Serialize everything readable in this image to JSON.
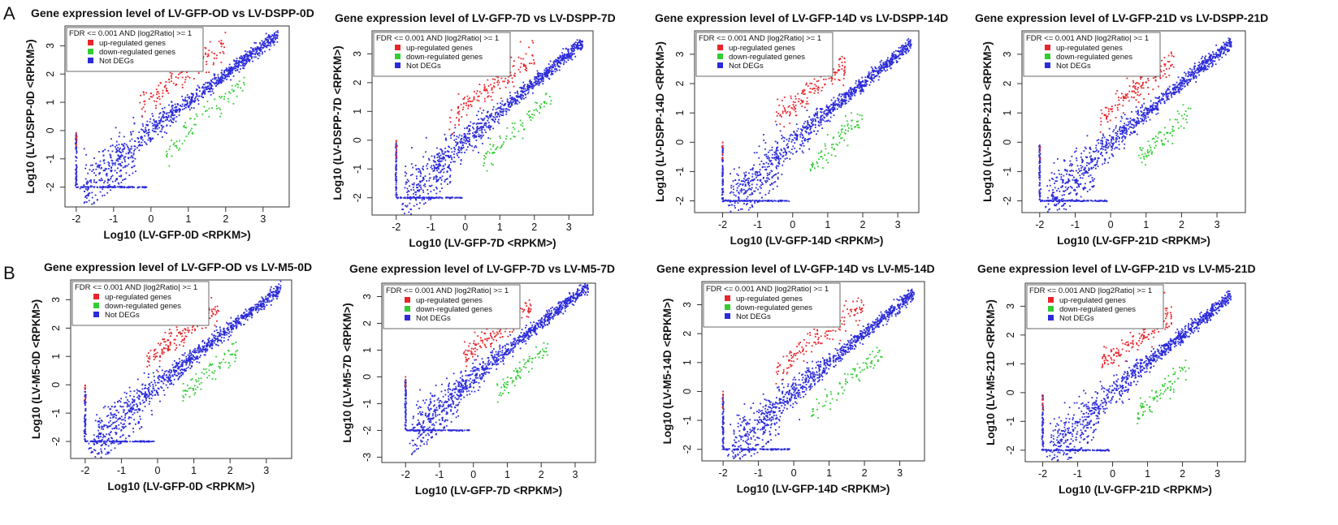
{
  "panel_labels": [
    "A",
    "B"
  ],
  "legend": {
    "header": "FDR <= 0.001  AND |log2Ratio| >= 1",
    "items": [
      {
        "label": "up-regulated genes",
        "color": "#e8262b"
      },
      {
        "label": "down-regulated genes",
        "color": "#33cc33"
      },
      {
        "label": "Not DEGs",
        "color": "#2b2bd9"
      }
    ]
  },
  "chart_data": [
    {
      "type": "scatter",
      "panel": "A",
      "title": "Gene expression level of LV-GFP-OD vs LV-DSPP-0D",
      "xlabel": "Log10 (LV-GFP-0D <RPKM>)",
      "ylabel": "Log10 (LV-DSPP-0D <RPKM>)",
      "xlim": [
        -2.3,
        3.7
      ],
      "ylim": [
        -2.7,
        3.7
      ],
      "xticks": [
        "-2",
        "-1",
        "0",
        "1",
        "2",
        "3"
      ],
      "yticks": [
        "-2",
        "-1",
        "0",
        "1",
        "2",
        "3"
      ],
      "series": [
        {
          "name": "up-regulated genes",
          "color": "#e8262b",
          "x": [
            -0.3,
            0.0,
            0.3,
            0.6,
            1.0,
            1.5,
            2.0
          ],
          "y": [
            1.0,
            1.1,
            1.4,
            1.8,
            2.1,
            2.6,
            3.0
          ]
        },
        {
          "name": "down-regulated genes",
          "color": "#33cc33",
          "x": [
            0.4,
            0.8,
            1.2,
            1.6,
            2.0,
            2.5
          ],
          "y": [
            -0.8,
            -0.3,
            0.3,
            0.7,
            1.2,
            1.6
          ]
        },
        {
          "name": "Not DEGs",
          "color": "#2b2bd9",
          "x": [
            -2.0,
            -1.0,
            0.0,
            1.0,
            2.0,
            3.0,
            3.5
          ],
          "y": [
            -2.0,
            -1.0,
            0.0,
            1.0,
            2.0,
            3.0,
            3.5
          ]
        }
      ]
    },
    {
      "type": "scatter",
      "panel": "A",
      "title": "Gene expression level of LV-GFP-7D vs LV-DSPP-7D",
      "xlabel": "Log10 (LV-GFP-7D <RPKM>)",
      "ylabel": "Log10 (LV-DSPP-7D <RPKM>)",
      "xlim": [
        -2.7,
        3.7
      ],
      "ylim": [
        -2.6,
        3.8
      ],
      "xticks": [
        "-2",
        "-1",
        "0",
        "1",
        "2",
        "3"
      ],
      "yticks": [
        "-2",
        "-1",
        "0",
        "1",
        "2",
        "3"
      ],
      "series": [
        {
          "name": "up-regulated genes",
          "color": "#e8262b",
          "x": [
            -0.5,
            0.0,
            0.5,
            1.0,
            1.5,
            2.0
          ],
          "y": [
            0.6,
            1.2,
            1.6,
            2.0,
            2.5,
            2.9
          ]
        },
        {
          "name": "down-regulated genes",
          "color": "#33cc33",
          "x": [
            0.5,
            1.0,
            1.5,
            2.0,
            2.5
          ],
          "y": [
            -0.8,
            -0.2,
            0.4,
            1.0,
            1.5
          ]
        },
        {
          "name": "Not DEGs",
          "color": "#2b2bd9",
          "x": [
            -2.0,
            -1.0,
            0.0,
            1.0,
            2.0,
            3.0,
            3.5
          ],
          "y": [
            -2.0,
            -1.0,
            0.0,
            1.0,
            2.0,
            3.0,
            3.5
          ]
        }
      ]
    },
    {
      "type": "scatter",
      "panel": "A",
      "title": "Gene expression level of LV-GFP-14D vs LV-DSPP-14D",
      "xlabel": "Log10 (LV-GFP-14D <RPKM>)",
      "ylabel": "Log10 (LV-DSPP-14D <RPKM>)",
      "xlim": [
        -2.8,
        3.6
      ],
      "ylim": [
        -2.4,
        3.8
      ],
      "xticks": [
        "-2",
        "-1",
        "0",
        "1",
        "2",
        "3"
      ],
      "yticks": [
        "-2",
        "-1",
        "0",
        "1",
        "2",
        "3"
      ],
      "series": [
        {
          "name": "up-regulated genes",
          "color": "#e8262b",
          "x": [
            -0.5,
            0.0,
            0.5,
            1.0,
            1.5
          ],
          "y": [
            0.8,
            1.2,
            1.8,
            2.2,
            2.6
          ]
        },
        {
          "name": "down-regulated genes",
          "color": "#33cc33",
          "x": [
            0.5,
            1.0,
            1.5,
            2.0
          ],
          "y": [
            -0.9,
            -0.3,
            0.4,
            0.9
          ]
        },
        {
          "name": "Not DEGs",
          "color": "#2b2bd9",
          "x": [
            -2.0,
            -1.0,
            0.0,
            1.0,
            2.0,
            3.0,
            3.5
          ],
          "y": [
            -2.0,
            -1.0,
            0.0,
            1.0,
            2.0,
            3.0,
            3.5
          ]
        }
      ]
    },
    {
      "type": "scatter",
      "panel": "A",
      "title": "Gene expression level of LV-GFP-21D vs LV-DSPP-21D",
      "xlabel": "Log10 (LV-GFP-21D <RPKM>)",
      "ylabel": "Log10 (LV-DSPP-21D <RPKM>)",
      "xlim": [
        -2.5,
        3.8
      ],
      "ylim": [
        -2.4,
        3.8
      ],
      "xticks": [
        "-2",
        "-1",
        "0",
        "1",
        "2",
        "3"
      ],
      "yticks": [
        "-2",
        "-1",
        "0",
        "1",
        "2",
        "3"
      ],
      "series": [
        {
          "name": "up-regulated genes",
          "color": "#e8262b",
          "x": [
            -0.3,
            0.3,
            0.8,
            1.3,
            1.8
          ],
          "y": [
            0.9,
            1.4,
            1.9,
            2.3,
            2.7
          ]
        },
        {
          "name": "down-regulated genes",
          "color": "#33cc33",
          "x": [
            0.8,
            1.3,
            1.8,
            2.3
          ],
          "y": [
            -0.6,
            0.0,
            0.5,
            1.1
          ]
        },
        {
          "name": "Not DEGs",
          "color": "#2b2bd9",
          "x": [
            -2.0,
            -1.0,
            0.0,
            1.0,
            2.0,
            3.0,
            3.6
          ],
          "y": [
            -2.0,
            -1.0,
            0.0,
            1.0,
            2.0,
            3.0,
            3.6
          ]
        }
      ]
    },
    {
      "type": "scatter",
      "panel": "B",
      "title": "Gene expression level of LV-GFP-OD vs LV-M5-0D",
      "xlabel": "Log10 (LV-GFP-0D <RPKM>)",
      "ylabel": "Log10 (LV-M5-0D <RPKM>)",
      "xlim": [
        -2.4,
        3.7
      ],
      "ylim": [
        -2.6,
        3.7
      ],
      "xticks": [
        "-2",
        "-1",
        "0",
        "1",
        "2",
        "3"
      ],
      "yticks": [
        "-2",
        "-1",
        "0",
        "1",
        "2",
        "3"
      ],
      "series": [
        {
          "name": "up-regulated genes",
          "color": "#e8262b",
          "x": [
            -0.3,
            0.2,
            0.7,
            1.2,
            1.7
          ],
          "y": [
            0.9,
            1.3,
            1.8,
            2.3,
            2.7
          ]
        },
        {
          "name": "down-regulated genes",
          "color": "#33cc33",
          "x": [
            0.7,
            1.2,
            1.7,
            2.2
          ],
          "y": [
            -0.3,
            0.2,
            0.7,
            1.2
          ]
        },
        {
          "name": "Not DEGs",
          "color": "#2b2bd9",
          "x": [
            -2.0,
            -1.0,
            0.0,
            1.0,
            2.0,
            3.0,
            3.5
          ],
          "y": [
            -2.0,
            -1.0,
            0.0,
            1.0,
            2.0,
            3.0,
            3.5
          ]
        }
      ]
    },
    {
      "type": "scatter",
      "panel": "B",
      "title": "Gene expression level of LV-GFP-7D vs LV-M5-7D",
      "xlabel": "Log10 (LV-GFP-7D <RPKM>)",
      "ylabel": "Log10 (LV-M5-7D <RPKM>)",
      "xlim": [
        -2.7,
        3.6
      ],
      "ylim": [
        -3.2,
        3.5
      ],
      "xticks": [
        "-2",
        "-1",
        "0",
        "1",
        "2",
        "3"
      ],
      "yticks": [
        "-3",
        "-2",
        "-1",
        "0",
        "1",
        "2",
        "3"
      ],
      "series": [
        {
          "name": "up-regulated genes",
          "color": "#e8262b",
          "x": [
            -0.3,
            0.2,
            0.7,
            1.2,
            1.7
          ],
          "y": [
            0.8,
            1.2,
            1.7,
            2.2,
            2.6
          ]
        },
        {
          "name": "down-regulated genes",
          "color": "#33cc33",
          "x": [
            0.7,
            1.2,
            1.7,
            2.2
          ],
          "y": [
            -0.5,
            0.0,
            0.6,
            1.1
          ]
        },
        {
          "name": "Not DEGs",
          "color": "#2b2bd9",
          "x": [
            -2.0,
            -1.0,
            0.0,
            1.0,
            2.0,
            3.0,
            3.4
          ],
          "y": [
            -2.0,
            -1.0,
            0.0,
            1.0,
            2.0,
            3.0,
            3.4
          ]
        }
      ]
    },
    {
      "type": "scatter",
      "panel": "B",
      "title": "Gene expression level of LV-GFP-14D vs LV-M5-14D",
      "xlabel": "Log10 (LV-GFP-14D <RPKM>)",
      "ylabel": "Log10 (LV-M5-14D <RPKM>)",
      "xlim": [
        -2.6,
        3.7
      ],
      "ylim": [
        -2.4,
        3.8
      ],
      "xticks": [
        "-2",
        "-1",
        "0",
        "1",
        "2",
        "3"
      ],
      "yticks": [
        "-2",
        "-1",
        "0",
        "1",
        "2",
        "3"
      ],
      "series": [
        {
          "name": "up-regulated genes",
          "color": "#e8262b",
          "x": [
            -0.5,
            0.0,
            0.5,
            1.0,
            1.5,
            2.0
          ],
          "y": [
            0.7,
            1.2,
            1.7,
            2.1,
            2.6,
            3.0
          ]
        },
        {
          "name": "down-regulated genes",
          "color": "#33cc33",
          "x": [
            0.5,
            1.0,
            1.5,
            2.0,
            2.5
          ],
          "y": [
            -0.8,
            -0.2,
            0.4,
            0.9,
            1.4
          ]
        },
        {
          "name": "Not DEGs",
          "color": "#2b2bd9",
          "x": [
            -2.0,
            -1.0,
            0.0,
            1.0,
            2.0,
            3.0,
            3.5
          ],
          "y": [
            -2.0,
            -1.0,
            0.0,
            1.0,
            2.0,
            3.0,
            3.5
          ]
        }
      ]
    },
    {
      "type": "scatter",
      "panel": "B",
      "title": "Gene expression level of LV-GFP-21D vs LV-M5-21D",
      "xlabel": "Log10 (LV-GFP-21D <RPKM>)",
      "ylabel": "Log10 (LV-M5-21D <RPKM>)",
      "xlim": [
        -2.5,
        3.8
      ],
      "ylim": [
        -2.4,
        3.8
      ],
      "xticks": [
        "-2",
        "-1",
        "0",
        "1",
        "2",
        "3"
      ],
      "yticks": [
        "-2",
        "-1",
        "0",
        "1",
        "2",
        "3"
      ],
      "series": [
        {
          "name": "up-regulated genes",
          "color": "#e8262b",
          "x": [
            -0.3,
            0.2,
            0.7,
            1.2,
            1.7
          ],
          "y": [
            1.0,
            1.4,
            1.8,
            2.3,
            2.7
          ]
        },
        {
          "name": "down-regulated genes",
          "color": "#33cc33",
          "x": [
            0.7,
            1.2,
            1.7,
            2.2
          ],
          "y": [
            -0.8,
            -0.2,
            0.4,
            1.0
          ]
        },
        {
          "name": "Not DEGs",
          "color": "#2b2bd9",
          "x": [
            -2.0,
            -1.0,
            0.0,
            1.0,
            2.0,
            3.0,
            3.6
          ],
          "y": [
            -2.0,
            -1.0,
            0.0,
            1.0,
            2.0,
            3.0,
            3.6
          ]
        }
      ]
    }
  ]
}
